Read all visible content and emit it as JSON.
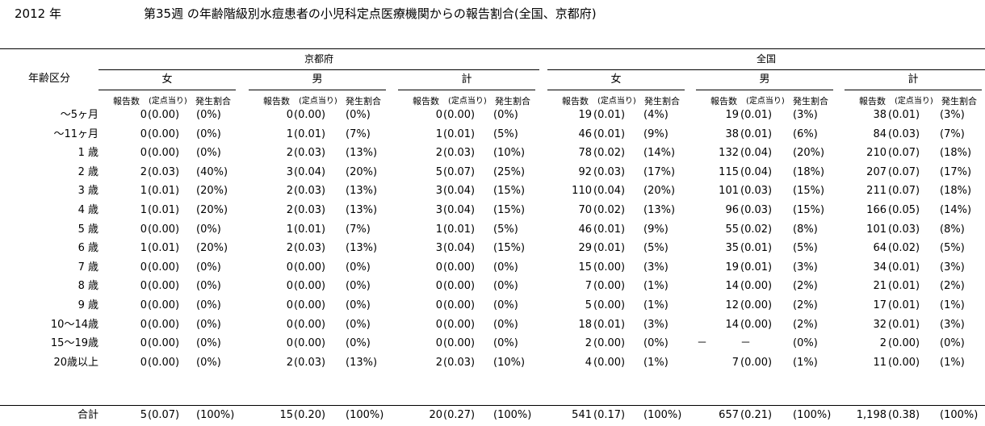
{
  "header": {
    "year": "2012 年",
    "title": "第35週 の年齢階級別水痘患者の小児科定点医療機関からの報告割合(全国、京都府)"
  },
  "table": {
    "row_header": "年齢区分",
    "regions": [
      "京都府",
      "全国"
    ],
    "sexes": [
      "女",
      "男",
      "計"
    ],
    "subheaders": {
      "count": "報告数",
      "per_site": "(定点当り)",
      "share": "発生割合"
    },
    "rows": [
      {
        "age": "～5ヶ月",
        "cells": [
          [
            "0",
            "(0.00)",
            "(0%)"
          ],
          [
            "0",
            "(0.00)",
            "(0%)"
          ],
          [
            "0",
            "(0.00)",
            "(0%)"
          ],
          [
            "19",
            "(0.01)",
            "(4%)"
          ],
          [
            "19",
            "(0.01)",
            "(3%)"
          ],
          [
            "38",
            "(0.01)",
            "(3%)"
          ]
        ]
      },
      {
        "age": "～11ヶ月",
        "cells": [
          [
            "0",
            "(0.00)",
            "(0%)"
          ],
          [
            "1",
            "(0.01)",
            "(7%)"
          ],
          [
            "1",
            "(0.01)",
            "(5%)"
          ],
          [
            "46",
            "(0.01)",
            "(9%)"
          ],
          [
            "38",
            "(0.01)",
            "(6%)"
          ],
          [
            "84",
            "(0.03)",
            "(7%)"
          ]
        ]
      },
      {
        "age": "1 歳",
        "cells": [
          [
            "0",
            "(0.00)",
            "(0%)"
          ],
          [
            "2",
            "(0.03)",
            "(13%)"
          ],
          [
            "2",
            "(0.03)",
            "(10%)"
          ],
          [
            "78",
            "(0.02)",
            "(14%)"
          ],
          [
            "132",
            "(0.04)",
            "(20%)"
          ],
          [
            "210",
            "(0.07)",
            "(18%)"
          ]
        ]
      },
      {
        "age": "2 歳",
        "cells": [
          [
            "2",
            "(0.03)",
            "(40%)"
          ],
          [
            "3",
            "(0.04)",
            "(20%)"
          ],
          [
            "5",
            "(0.07)",
            "(25%)"
          ],
          [
            "92",
            "(0.03)",
            "(17%)"
          ],
          [
            "115",
            "(0.04)",
            "(18%)"
          ],
          [
            "207",
            "(0.07)",
            "(17%)"
          ]
        ]
      },
      {
        "age": "3 歳",
        "cells": [
          [
            "1",
            "(0.01)",
            "(20%)"
          ],
          [
            "2",
            "(0.03)",
            "(13%)"
          ],
          [
            "3",
            "(0.04)",
            "(15%)"
          ],
          [
            "110",
            "(0.04)",
            "(20%)"
          ],
          [
            "101",
            "(0.03)",
            "(15%)"
          ],
          [
            "211",
            "(0.07)",
            "(18%)"
          ]
        ]
      },
      {
        "age": "4 歳",
        "cells": [
          [
            "1",
            "(0.01)",
            "(20%)"
          ],
          [
            "2",
            "(0.03)",
            "(13%)"
          ],
          [
            "3",
            "(0.04)",
            "(15%)"
          ],
          [
            "70",
            "(0.02)",
            "(13%)"
          ],
          [
            "96",
            "(0.03)",
            "(15%)"
          ],
          [
            "166",
            "(0.05)",
            "(14%)"
          ]
        ]
      },
      {
        "age": "5 歳",
        "cells": [
          [
            "0",
            "(0.00)",
            "(0%)"
          ],
          [
            "1",
            "(0.01)",
            "(7%)"
          ],
          [
            "1",
            "(0.01)",
            "(5%)"
          ],
          [
            "46",
            "(0.01)",
            "(9%)"
          ],
          [
            "55",
            "(0.02)",
            "(8%)"
          ],
          [
            "101",
            "(0.03)",
            "(8%)"
          ]
        ]
      },
      {
        "age": "6 歳",
        "cells": [
          [
            "1",
            "(0.01)",
            "(20%)"
          ],
          [
            "2",
            "(0.03)",
            "(13%)"
          ],
          [
            "3",
            "(0.04)",
            "(15%)"
          ],
          [
            "29",
            "(0.01)",
            "(5%)"
          ],
          [
            "35",
            "(0.01)",
            "(5%)"
          ],
          [
            "64",
            "(0.02)",
            "(5%)"
          ]
        ]
      },
      {
        "age": "7 歳",
        "cells": [
          [
            "0",
            "(0.00)",
            "(0%)"
          ],
          [
            "0",
            "(0.00)",
            "(0%)"
          ],
          [
            "0",
            "(0.00)",
            "(0%)"
          ],
          [
            "15",
            "(0.00)",
            "(3%)"
          ],
          [
            "19",
            "(0.01)",
            "(3%)"
          ],
          [
            "34",
            "(0.01)",
            "(3%)"
          ]
        ]
      },
      {
        "age": "8 歳",
        "cells": [
          [
            "0",
            "(0.00)",
            "(0%)"
          ],
          [
            "0",
            "(0.00)",
            "(0%)"
          ],
          [
            "0",
            "(0.00)",
            "(0%)"
          ],
          [
            "7",
            "(0.00)",
            "(1%)"
          ],
          [
            "14",
            "(0.00)",
            "(2%)"
          ],
          [
            "21",
            "(0.01)",
            "(2%)"
          ]
        ]
      },
      {
        "age": "9 歳",
        "cells": [
          [
            "0",
            "(0.00)",
            "(0%)"
          ],
          [
            "0",
            "(0.00)",
            "(0%)"
          ],
          [
            "0",
            "(0.00)",
            "(0%)"
          ],
          [
            "5",
            "(0.00)",
            "(1%)"
          ],
          [
            "12",
            "(0.00)",
            "(2%)"
          ],
          [
            "17",
            "(0.01)",
            "(1%)"
          ]
        ]
      },
      {
        "age": "10～14歳",
        "cells": [
          [
            "0",
            "(0.00)",
            "(0%)"
          ],
          [
            "0",
            "(0.00)",
            "(0%)"
          ],
          [
            "0",
            "(0.00)",
            "(0%)"
          ],
          [
            "18",
            "(0.01)",
            "(3%)"
          ],
          [
            "14",
            "(0.00)",
            "(2%)"
          ],
          [
            "32",
            "(0.01)",
            "(3%)"
          ]
        ]
      },
      {
        "age": "15～19歳",
        "cells": [
          [
            "0",
            "(0.00)",
            "(0%)"
          ],
          [
            "0",
            "(0.00)",
            "(0%)"
          ],
          [
            "0",
            "(0.00)",
            "(0%)"
          ],
          [
            "2",
            "(0.00)",
            "(0%)"
          ],
          [
            "－",
            "－",
            "(0%)"
          ],
          [
            "2",
            "(0.00)",
            "(0%)"
          ]
        ]
      },
      {
        "age": "20歳以上",
        "cells": [
          [
            "0",
            "(0.00)",
            "(0%)"
          ],
          [
            "2",
            "(0.03)",
            "(13%)"
          ],
          [
            "2",
            "(0.03)",
            "(10%)"
          ],
          [
            "4",
            "(0.00)",
            "(1%)"
          ],
          [
            "7",
            "(0.00)",
            "(1%)"
          ],
          [
            "11",
            "(0.00)",
            "(1%)"
          ]
        ]
      }
    ],
    "total": {
      "age": "合計",
      "cells": [
        [
          "5",
          "(0.07)",
          "(100%)"
        ],
        [
          "15",
          "(0.20)",
          "(100%)"
        ],
        [
          "20",
          "(0.27)",
          "(100%)"
        ],
        [
          "541",
          "(0.17)",
          "(100%)"
        ],
        [
          "657",
          "(0.21)",
          "(100%)"
        ],
        [
          "1,198",
          "(0.38)",
          "(100%)"
        ]
      ]
    }
  }
}
